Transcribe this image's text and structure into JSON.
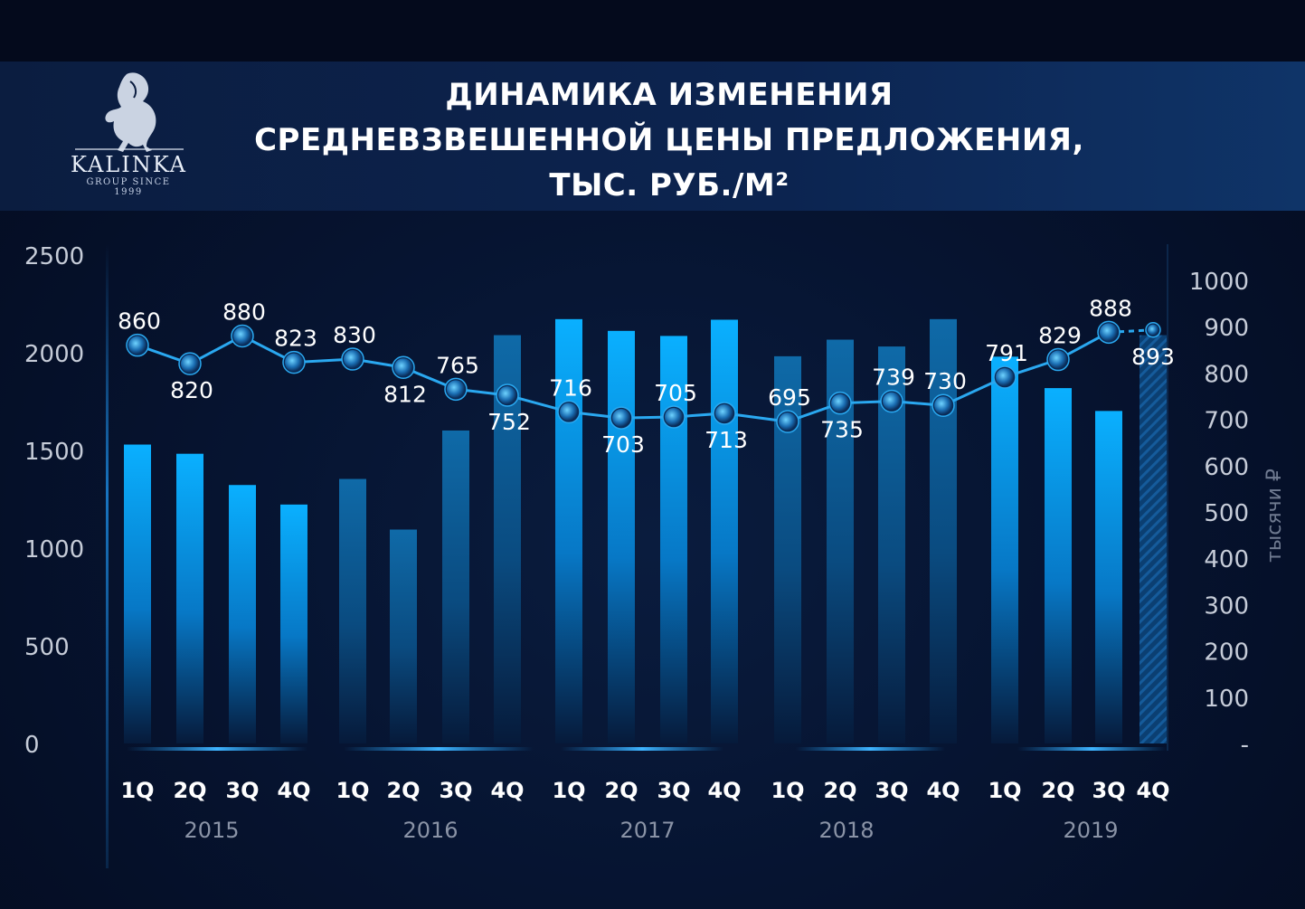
{
  "header": {
    "title_lines": [
      "ДИНАМИКА ИЗМЕНЕНИЯ",
      "СРЕДНЕВЗВЕШЕННОЙ ЦЕНЫ ПРЕДЛОЖЕНИЯ,",
      "ТЫС. РУБ./М²"
    ]
  },
  "logo": {
    "name": "KALINKA",
    "tagline": "GROUP SINCE 1999",
    "icon": "horse-logo-icon"
  },
  "colors": {
    "bar_bright": "#0aa6f2",
    "bar_dark": "#0d6fad",
    "line": "#2aa8f0",
    "axis_text": "#c6ccd8",
    "year_text": "#8a93a6",
    "quarter_text": "#ffffff"
  },
  "chart_data": {
    "type": "bar+line",
    "quarters": [
      "1Q",
      "2Q",
      "3Q",
      "4Q",
      "1Q",
      "2Q",
      "3Q",
      "4Q",
      "1Q",
      "2Q",
      "3Q",
      "4Q",
      "1Q",
      "2Q",
      "3Q",
      "4Q",
      "1Q",
      "2Q",
      "3Q",
      "4Q"
    ],
    "years": [
      "2015",
      "2016",
      "2017",
      "2018",
      "2019"
    ],
    "bars": {
      "values": [
        1530,
        1483,
        1323,
        1223,
        1354,
        1095,
        1602,
        2090,
        2172,
        2112,
        2086,
        2169,
        1982,
        2067,
        2032,
        2172,
        1980,
        1819,
        1702,
        2090
      ],
      "style": [
        "bright",
        "bright",
        "bright",
        "bright",
        "dark",
        "dark",
        "dark",
        "dark",
        "bright",
        "bright",
        "bright",
        "bright",
        "dark",
        "dark",
        "dark",
        "dark",
        "bright",
        "bright",
        "bright",
        "hatched"
      ]
    },
    "line": {
      "values": [
        860,
        820,
        880,
        823,
        830,
        812,
        765,
        752,
        716,
        703,
        705,
        713,
        695,
        735,
        739,
        730,
        791,
        829,
        888,
        893
      ],
      "labels": [
        "860",
        "820",
        "880",
        "823",
        "830",
        "812",
        "765",
        "752",
        "716",
        "703",
        "705",
        "713",
        "695",
        "735",
        "739",
        "730",
        "791",
        "829",
        "888",
        "893"
      ],
      "forecast_from_index": 18
    },
    "y_left": {
      "ticks": [
        "2500",
        "2000",
        "1500",
        "1000",
        "500",
        "0"
      ],
      "range": [
        0,
        2500
      ]
    },
    "y_right": {
      "ticks": [
        "1000",
        "900",
        "800",
        "700",
        "600",
        "500",
        "400",
        "300",
        "200",
        "100",
        "-"
      ],
      "label": "тысячи ₽"
    }
  }
}
